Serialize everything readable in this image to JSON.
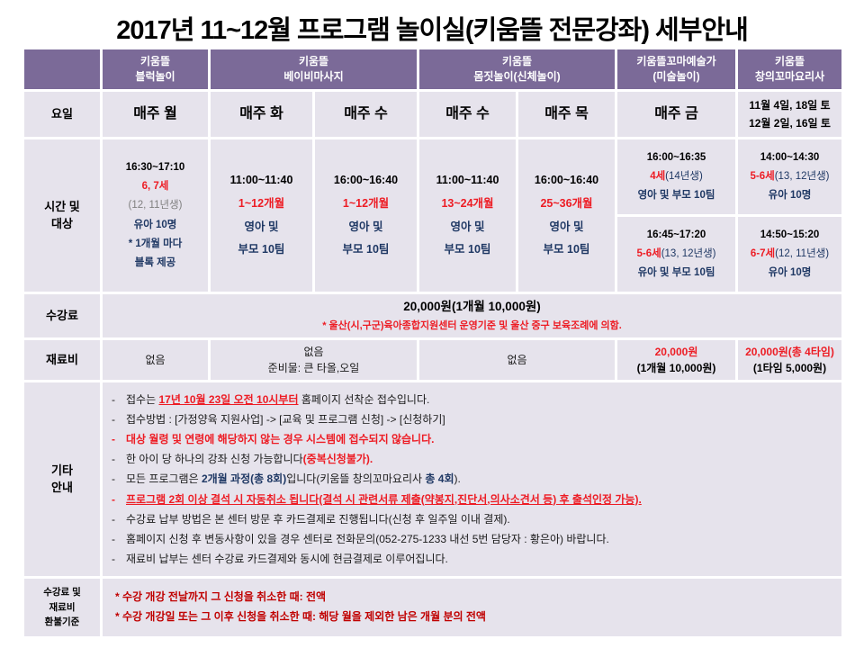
{
  "title": "2017년 11~12월 프로그램 놀이실(키움뜰 전문강좌) 세부안내",
  "colors": {
    "header_purple": "#7b6a98",
    "cell_lavender": "#e6e3ec",
    "accent_red": "#ed1c24",
    "accent_navy": "#1f3864",
    "refund_darkred": "#c00000"
  },
  "header": {
    "programs": [
      {
        "line1": "키움뜰",
        "line2": "블럭놀이"
      },
      {
        "line1": "키움뜰",
        "line2": "베이비마사지"
      },
      {
        "line1": "키움뜰",
        "line2": "몸짓놀이(신체놀이)"
      },
      {
        "line1": "키움뜰꼬마예술가",
        "line2": "(미술놀이)"
      },
      {
        "line1": "키움뜰",
        "line2": "창의꼬마요리사"
      }
    ]
  },
  "rows": {
    "day": {
      "label": "요일",
      "cells": [
        "매주 월",
        "매주 화",
        "매주 수",
        "매주 수",
        "매주 목",
        "매주 금"
      ],
      "saturday": {
        "line1": "11월 4일, 18일 토",
        "line2": "12월 2일, 16일 토"
      }
    },
    "time": {
      "label_line1": "시간 및",
      "label_line2": "대상",
      "block": {
        "time": "16:30~17:10",
        "age": "6, 7세",
        "birth": "(12, 11년생)",
        "target": "유아 10명",
        "note1": "* 1개월 마다",
        "note2": "블록 제공"
      },
      "massage_tue": {
        "time": "11:00~11:40",
        "age": "1~12개월",
        "target1": "영아 및",
        "target2": "부모 10팀"
      },
      "massage_wed": {
        "time": "16:00~16:40",
        "age": "1~12개월",
        "target1": "영아 및",
        "target2": "부모 10팀"
      },
      "movement_wed": {
        "time": "11:00~11:40",
        "age": "13~24개월",
        "target1": "영아 및",
        "target2": "부모 10팀"
      },
      "movement_thu": {
        "time": "16:00~16:40",
        "age": "25~36개월",
        "target1": "영아 및",
        "target2": "부모 10팀"
      },
      "art_1": {
        "time": "16:00~16:35",
        "age": "4세",
        "birth": "(14년생)",
        "target": "영아 및 부모 10팀"
      },
      "art_2": {
        "time": "16:45~17:20",
        "age": "5-6세",
        "birth": "(13, 12년생)",
        "target": "유아 및 부모 10팀"
      },
      "cook_1": {
        "time": "14:00~14:30",
        "age": "5-6세",
        "birth": "(13, 12년생)",
        "target": "유아 10명"
      },
      "cook_2": {
        "time": "14:50~15:20",
        "age": "6-7세",
        "birth": "(12, 11년생)",
        "target": "유아 10명"
      }
    },
    "fee": {
      "label": "수강료",
      "main": "20,000원(1개월 10,000원)",
      "note": "* 울산(시,구군)육아종합지원센터 운영기준 및 울산 중구 보육조례에 의함."
    },
    "material": {
      "label": "재료비",
      "none1": "없음",
      "none2_line1": "없음",
      "none2_line2": "준비물: 큰 타올,오일",
      "none3": "없음",
      "art_fee": "20,000원",
      "art_fee_sub": "(1개월 10,000원)",
      "cook_fee": "20,000원(총 4타임)",
      "cook_fee_sub": "(1타임 5,000원)"
    },
    "notes": {
      "label_line1": "기타",
      "label_line2": "안내",
      "lines": [
        {
          "bullet": "black",
          "segments": [
            {
              "t": "접수는 ",
              "s": "black"
            },
            {
              "t": "17년 10월 23일 오전 10시부터",
              "s": "red-underline"
            },
            {
              "t": " 홈페이지 선착순 접수입니다.",
              "s": "black"
            }
          ]
        },
        {
          "bullet": "black",
          "segments": [
            {
              "t": "접수방법 : [가정양육 지원사업] -> [교육 및 프로그램 신청] -> [신청하기]",
              "s": "black"
            }
          ]
        },
        {
          "bullet": "red",
          "segments": [
            {
              "t": "대상 월령 및 연령에 해당하지 않는 경우 시스템에 접수되지 않습니다.",
              "s": "red"
            }
          ]
        },
        {
          "bullet": "black",
          "segments": [
            {
              "t": "한 아이 당 하나의 강좌 신청 가능합니다",
              "s": "black"
            },
            {
              "t": "(중복신청불가).",
              "s": "red"
            }
          ]
        },
        {
          "bullet": "black",
          "segments": [
            {
              "t": "모든 프로그램은 ",
              "s": "black"
            },
            {
              "t": "2개월 과정(총 8회)",
              "s": "navy"
            },
            {
              "t": "입니다(키움뜰 창의꼬마요리사 ",
              "s": "black"
            },
            {
              "t": "총 4회",
              "s": "navy"
            },
            {
              "t": ").",
              "s": "black"
            }
          ]
        },
        {
          "bullet": "red",
          "segments": [
            {
              "t": "프로그램 2회 이상 결석 시 자동취소 됩니다(결석 시 관련서류 제출(약봉지,진단서,의사소견서  등) 후 출석인정 가능).",
              "s": "red-underline"
            }
          ]
        },
        {
          "bullet": "black",
          "segments": [
            {
              "t": "수강료 납부 방법은 본 센터 방문 후 카드결제로 진행됩니다(신청 후 일주일 이내 결제).",
              "s": "black"
            }
          ]
        },
        {
          "bullet": "black",
          "segments": [
            {
              "t": "홈페이지 신청 후 변동사항이 있을 경우 센터로 전화문의(052-275-1233 내선 5번 담당자 : 황은아) 바랍니다.",
              "s": "black"
            }
          ]
        },
        {
          "bullet": "black",
          "segments": [
            {
              "t": "재료비 납부는 센터 수강료 카드결제와 동시에 현금결제로 이루어집니다.",
              "s": "black"
            }
          ]
        }
      ]
    },
    "refund": {
      "label_line1": "수강료 및",
      "label_line2": "재료비",
      "label_line3": "환불기준",
      "line1": "* 수강 개강 전날까지 그 신청을 취소한 때: 전액",
      "line2": "* 수강 개강일 또는 그 이후 신청을 취소한 때: 해당 월을 제외한 남은 개월 분의 전액"
    }
  }
}
